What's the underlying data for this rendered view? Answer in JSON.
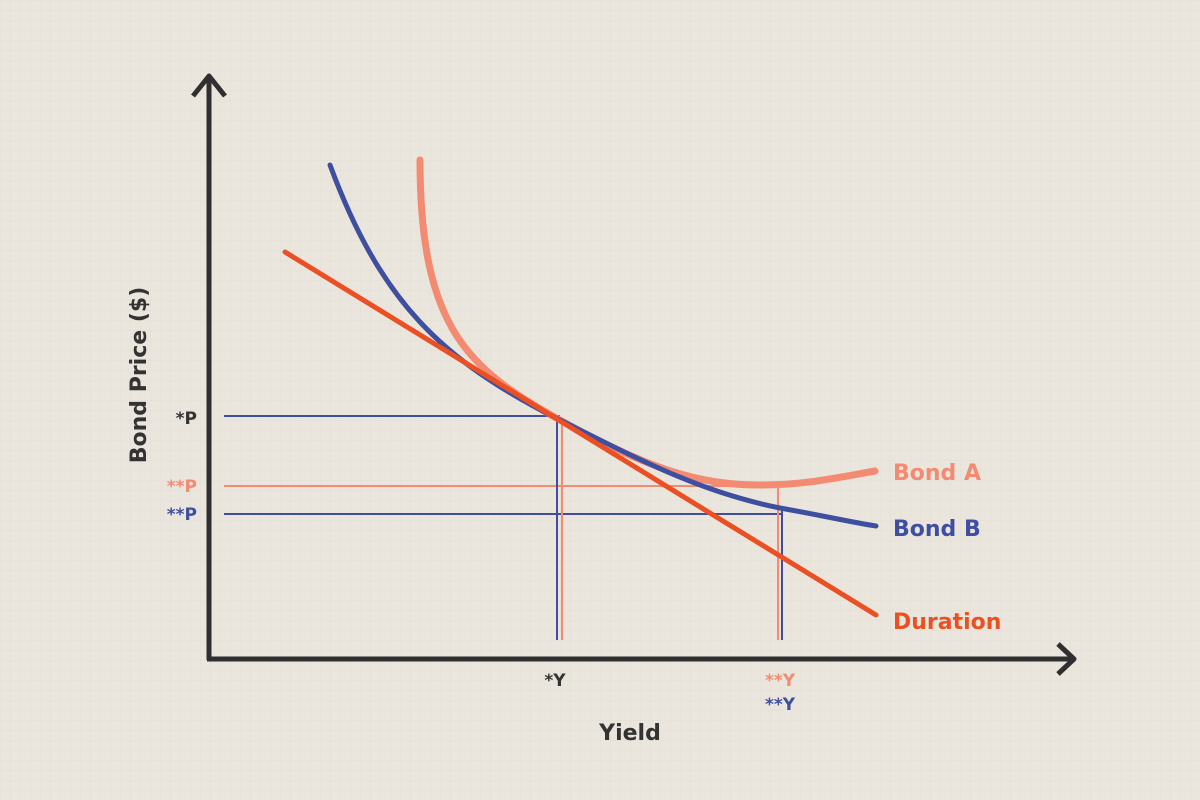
{
  "diagram": {
    "x_axis_label": "Yield",
    "y_axis_label": "Bond Price ($)",
    "colors": {
      "background": "#ebe6dd",
      "axis": "#2f2f2f",
      "bond_a": "#f28b72",
      "bond_b": "#3f4fa0",
      "duration": "#ea5023",
      "text": "#333333"
    },
    "curves": [
      {
        "id": "bond_a",
        "label": "Bond A"
      },
      {
        "id": "bond_b",
        "label": "Bond B"
      },
      {
        "id": "duration",
        "label": "Duration"
      }
    ],
    "price_markers": [
      {
        "id": "p_star",
        "label": "*P",
        "color": "text"
      },
      {
        "id": "p_a2",
        "label": "**P",
        "color": "bond_a"
      },
      {
        "id": "p_b2",
        "label": "**P",
        "color": "bond_b"
      }
    ],
    "yield_markers": [
      {
        "id": "y_star",
        "label": "*Y",
        "color": "text"
      },
      {
        "id": "y_a2",
        "label": "**Y",
        "color": "bond_a"
      },
      {
        "id": "y_b2",
        "label": "**Y",
        "color": "bond_b"
      }
    ]
  }
}
